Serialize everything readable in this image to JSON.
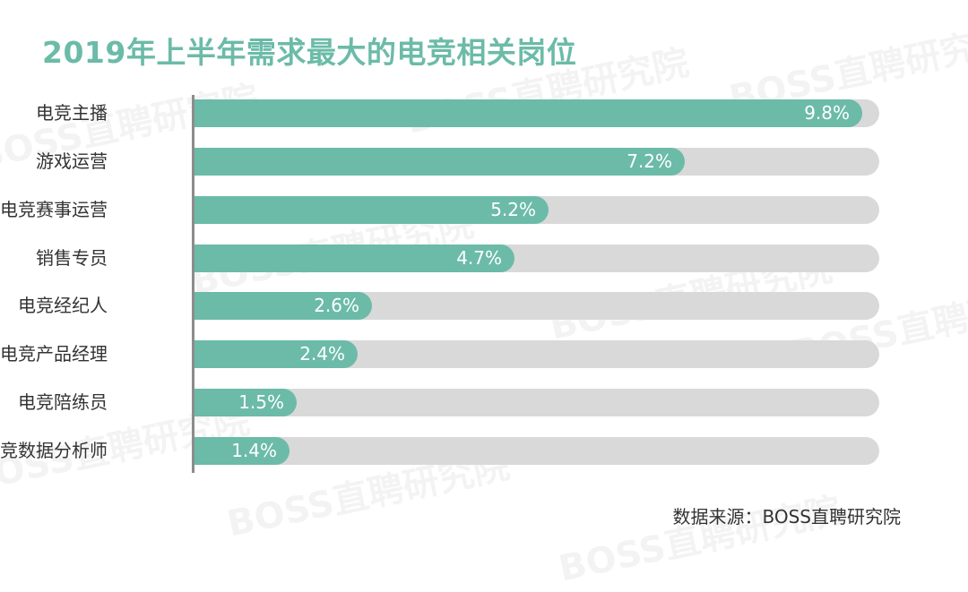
{
  "title": "2019年上半年需求最大的电竞相关岗位",
  "source": "数据来源：BOSS直聘研究院",
  "watermark": "BOSS直聘研究院",
  "colors": {
    "bar": "#6bbba8",
    "track": "#d9d9d9",
    "title": "#6bbba8"
  },
  "chart_data": {
    "type": "bar",
    "orientation": "horizontal",
    "title": "2019年上半年需求最大的电竞相关岗位",
    "categories": [
      "电竞主播",
      "游戏运营",
      "电竞赛事运营",
      "销售专员",
      "电竞经纪人",
      "电竞产品经理",
      "电竞陪练员",
      "电竞数据分析师"
    ],
    "values": [
      9.8,
      7.2,
      5.2,
      4.7,
      2.6,
      2.4,
      1.5,
      1.4
    ],
    "value_labels": [
      "9.8%",
      "7.2%",
      "5.2%",
      "4.7%",
      "2.6%",
      "2.4%",
      "1.5%",
      "1.4%"
    ],
    "unit": "%",
    "xlim": [
      0,
      9.8
    ],
    "grid": false,
    "legend": "none"
  }
}
